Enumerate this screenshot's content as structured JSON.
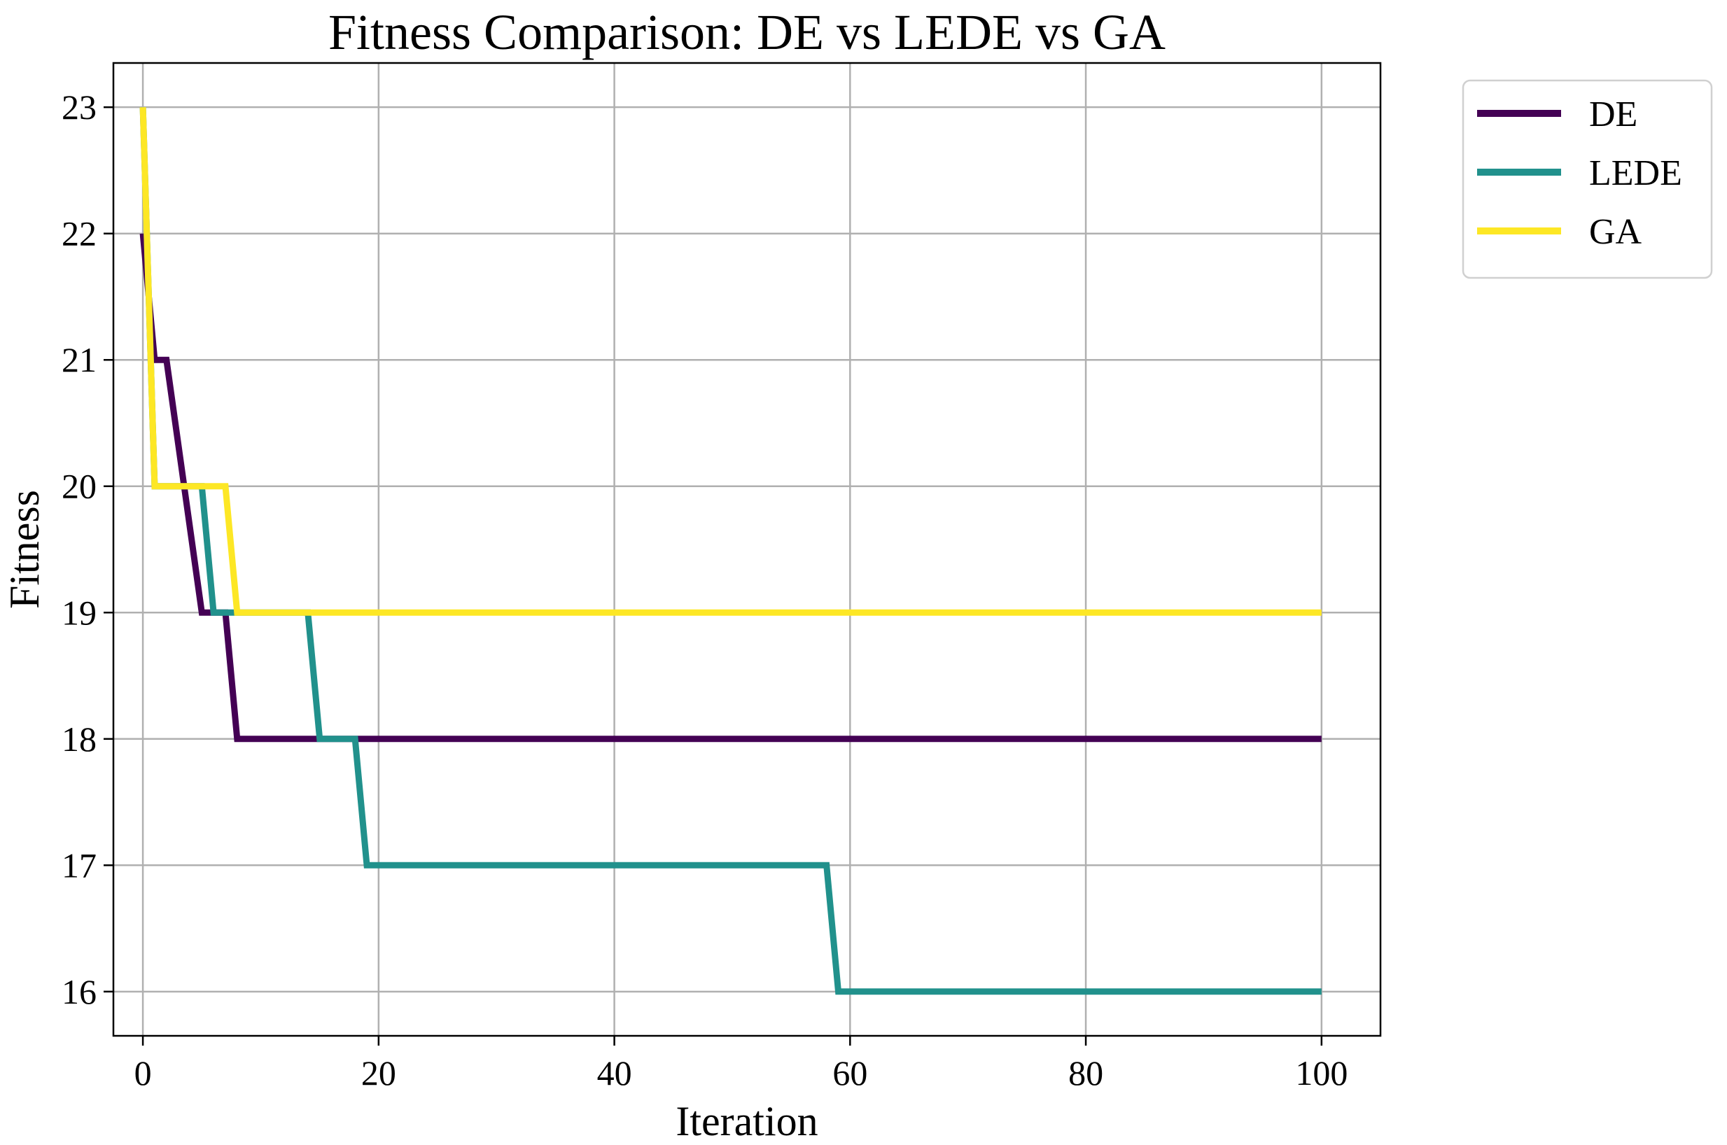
{
  "chart_data": {
    "type": "line",
    "title": "Fitness Comparison: DE vs LEDE vs GA",
    "xlabel": "Iteration",
    "ylabel": "Fitness",
    "xlim": [
      -2.5,
      105
    ],
    "ylim": [
      15.65,
      23.35
    ],
    "xticks": [
      0,
      20,
      40,
      60,
      80,
      100
    ],
    "yticks": [
      16,
      17,
      18,
      19,
      20,
      21,
      22,
      23
    ],
    "xtick_labels": [
      "0",
      "20",
      "40",
      "60",
      "80",
      "100"
    ],
    "ytick_labels": [
      "16",
      "17",
      "18",
      "19",
      "20",
      "21",
      "22",
      "23"
    ],
    "grid": true,
    "legend_position": "outside-top-right",
    "series": [
      {
        "name": "DE",
        "color": "#440154",
        "x": [
          0,
          1,
          2,
          5,
          6,
          7,
          8,
          100
        ],
        "y": [
          22,
          21,
          21,
          19,
          19,
          19,
          18,
          18
        ]
      },
      {
        "name": "LEDE",
        "color": "#21918c",
        "x": [
          0,
          1,
          5,
          6,
          14,
          15,
          18,
          19,
          58,
          59,
          100
        ],
        "y": [
          23,
          20,
          20,
          19,
          19,
          18,
          18,
          17,
          17,
          16,
          16
        ]
      },
      {
        "name": "GA",
        "color": "#fde725",
        "x": [
          0,
          1,
          7,
          8,
          100
        ],
        "y": [
          23,
          20,
          20,
          19,
          19
        ]
      }
    ]
  }
}
